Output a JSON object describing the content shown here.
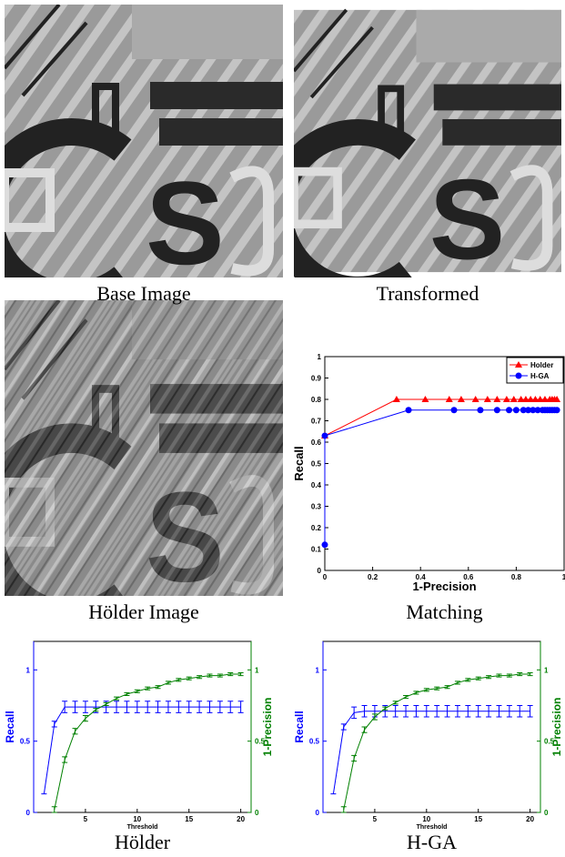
{
  "images": [
    {
      "caption": "Base Image"
    },
    {
      "caption": "Transformed"
    },
    {
      "caption": "Hölder Image"
    }
  ],
  "chart_data": [
    {
      "type": "line",
      "title": "Matching",
      "xlabel": "1-Precision",
      "ylabel": "Recall",
      "xlim": [
        0,
        1
      ],
      "ylim": [
        0,
        1
      ],
      "xticks": [
        0,
        0.2,
        0.4,
        0.6,
        0.8,
        1
      ],
      "yticks": [
        0,
        0.1,
        0.2,
        0.3,
        0.4,
        0.5,
        0.6,
        0.7,
        0.8,
        0.9,
        1
      ],
      "legend": "upper right",
      "series": [
        {
          "name": "Holder",
          "color": "#ff0000",
          "marker": "triangle",
          "x": [
            0,
            0.3,
            0.42,
            0.52,
            0.57,
            0.63,
            0.68,
            0.72,
            0.76,
            0.79,
            0.82,
            0.84,
            0.86,
            0.88,
            0.9,
            0.92,
            0.94,
            0.95,
            0.96,
            0.97
          ],
          "values": [
            0.63,
            0.8,
            0.8,
            0.8,
            0.8,
            0.8,
            0.8,
            0.8,
            0.8,
            0.8,
            0.8,
            0.8,
            0.8,
            0.8,
            0.8,
            0.8,
            0.8,
            0.8,
            0.8,
            0.8
          ]
        },
        {
          "name": "H-GA",
          "color": "#0000ff",
          "marker": "circle",
          "x": [
            0,
            0,
            0.35,
            0.54,
            0.65,
            0.72,
            0.77,
            0.8,
            0.83,
            0.85,
            0.87,
            0.89,
            0.91,
            0.92,
            0.93,
            0.94,
            0.95,
            0.96,
            0.97
          ],
          "values": [
            0.12,
            0.63,
            0.75,
            0.75,
            0.75,
            0.75,
            0.75,
            0.75,
            0.75,
            0.75,
            0.75,
            0.75,
            0.75,
            0.75,
            0.75,
            0.75,
            0.75,
            0.75,
            0.75
          ]
        }
      ]
    },
    {
      "type": "line",
      "title": "Hölder",
      "xlabel": "Threshold",
      "ylabel": "Recall",
      "y2label": "1-Precision",
      "xlim": [
        0,
        21
      ],
      "ylim": [
        0,
        1.2
      ],
      "y2lim": [
        0,
        1.2
      ],
      "xticks": [
        5,
        10,
        15,
        20
      ],
      "yticks": [
        0,
        0.5,
        1
      ],
      "y2ticks": [
        0,
        0.5,
        1
      ],
      "x": [
        1,
        2,
        3,
        4,
        5,
        6,
        7,
        8,
        9,
        10,
        11,
        12,
        13,
        14,
        15,
        16,
        17,
        18,
        19,
        20
      ],
      "series": [
        {
          "color": "#0000ff",
          "marker": "none",
          "values": [
            0.13,
            0.62,
            0.74,
            0.74,
            0.74,
            0.74,
            0.74,
            0.74,
            0.74,
            0.74,
            0.74,
            0.74,
            0.74,
            0.74,
            0.74,
            0.74,
            0.74,
            0.74,
            0.74,
            0.74
          ],
          "errors": [
            0,
            0.02,
            0.04,
            0.04,
            0.04,
            0.04,
            0.04,
            0.04,
            0.04,
            0.04,
            0.04,
            0.04,
            0.04,
            0.04,
            0.04,
            0.04,
            0.04,
            0.04,
            0.04,
            0.04
          ]
        },
        {
          "color": "#008000",
          "marker": "none",
          "axis": "y2",
          "values": [
            null,
            0.02,
            0.37,
            0.57,
            0.66,
            0.72,
            0.76,
            0.8,
            0.83,
            0.85,
            0.87,
            0.88,
            0.91,
            0.93,
            0.94,
            0.95,
            0.96,
            0.96,
            0.97,
            0.97
          ],
          "errors": [
            null,
            0.02,
            0.02,
            0.02,
            0.02,
            0.01,
            0.01,
            0.01,
            0.01,
            0.01,
            0.01,
            0.01,
            0.01,
            0.01,
            0.01,
            0.01,
            0.01,
            0.01,
            0.01,
            0.01
          ]
        }
      ]
    },
    {
      "type": "line",
      "title": "H-GA",
      "xlabel": "Threshold",
      "ylabel": "Recall",
      "y2label": "1-Precision",
      "xlim": [
        0,
        21
      ],
      "ylim": [
        0,
        1.2
      ],
      "y2lim": [
        0,
        1.2
      ],
      "xticks": [
        5,
        10,
        15,
        20
      ],
      "yticks": [
        0,
        0.5,
        1
      ],
      "y2ticks": [
        0,
        0.5,
        1
      ],
      "x": [
        1,
        2,
        3,
        4,
        5,
        6,
        7,
        8,
        9,
        10,
        11,
        12,
        13,
        14,
        15,
        16,
        17,
        18,
        19,
        20
      ],
      "series": [
        {
          "color": "#0000ff",
          "marker": "none",
          "values": [
            0.13,
            0.6,
            0.7,
            0.71,
            0.71,
            0.71,
            0.71,
            0.71,
            0.71,
            0.71,
            0.71,
            0.71,
            0.71,
            0.71,
            0.71,
            0.71,
            0.71,
            0.71,
            0.71,
            0.71
          ],
          "errors": [
            0,
            0.02,
            0.04,
            0.04,
            0.04,
            0.04,
            0.04,
            0.04,
            0.04,
            0.04,
            0.04,
            0.04,
            0.04,
            0.04,
            0.04,
            0.04,
            0.04,
            0.04,
            0.04,
            0.04
          ]
        },
        {
          "color": "#008000",
          "marker": "none",
          "axis": "y2",
          "values": [
            null,
            0.02,
            0.38,
            0.58,
            0.67,
            0.73,
            0.77,
            0.81,
            0.84,
            0.86,
            0.87,
            0.88,
            0.91,
            0.93,
            0.94,
            0.95,
            0.96,
            0.96,
            0.97,
            0.97
          ],
          "errors": [
            null,
            0.02,
            0.02,
            0.02,
            0.02,
            0.01,
            0.01,
            0.01,
            0.01,
            0.01,
            0.01,
            0.01,
            0.01,
            0.01,
            0.01,
            0.01,
            0.01,
            0.01,
            0.01,
            0.01
          ]
        }
      ]
    }
  ]
}
